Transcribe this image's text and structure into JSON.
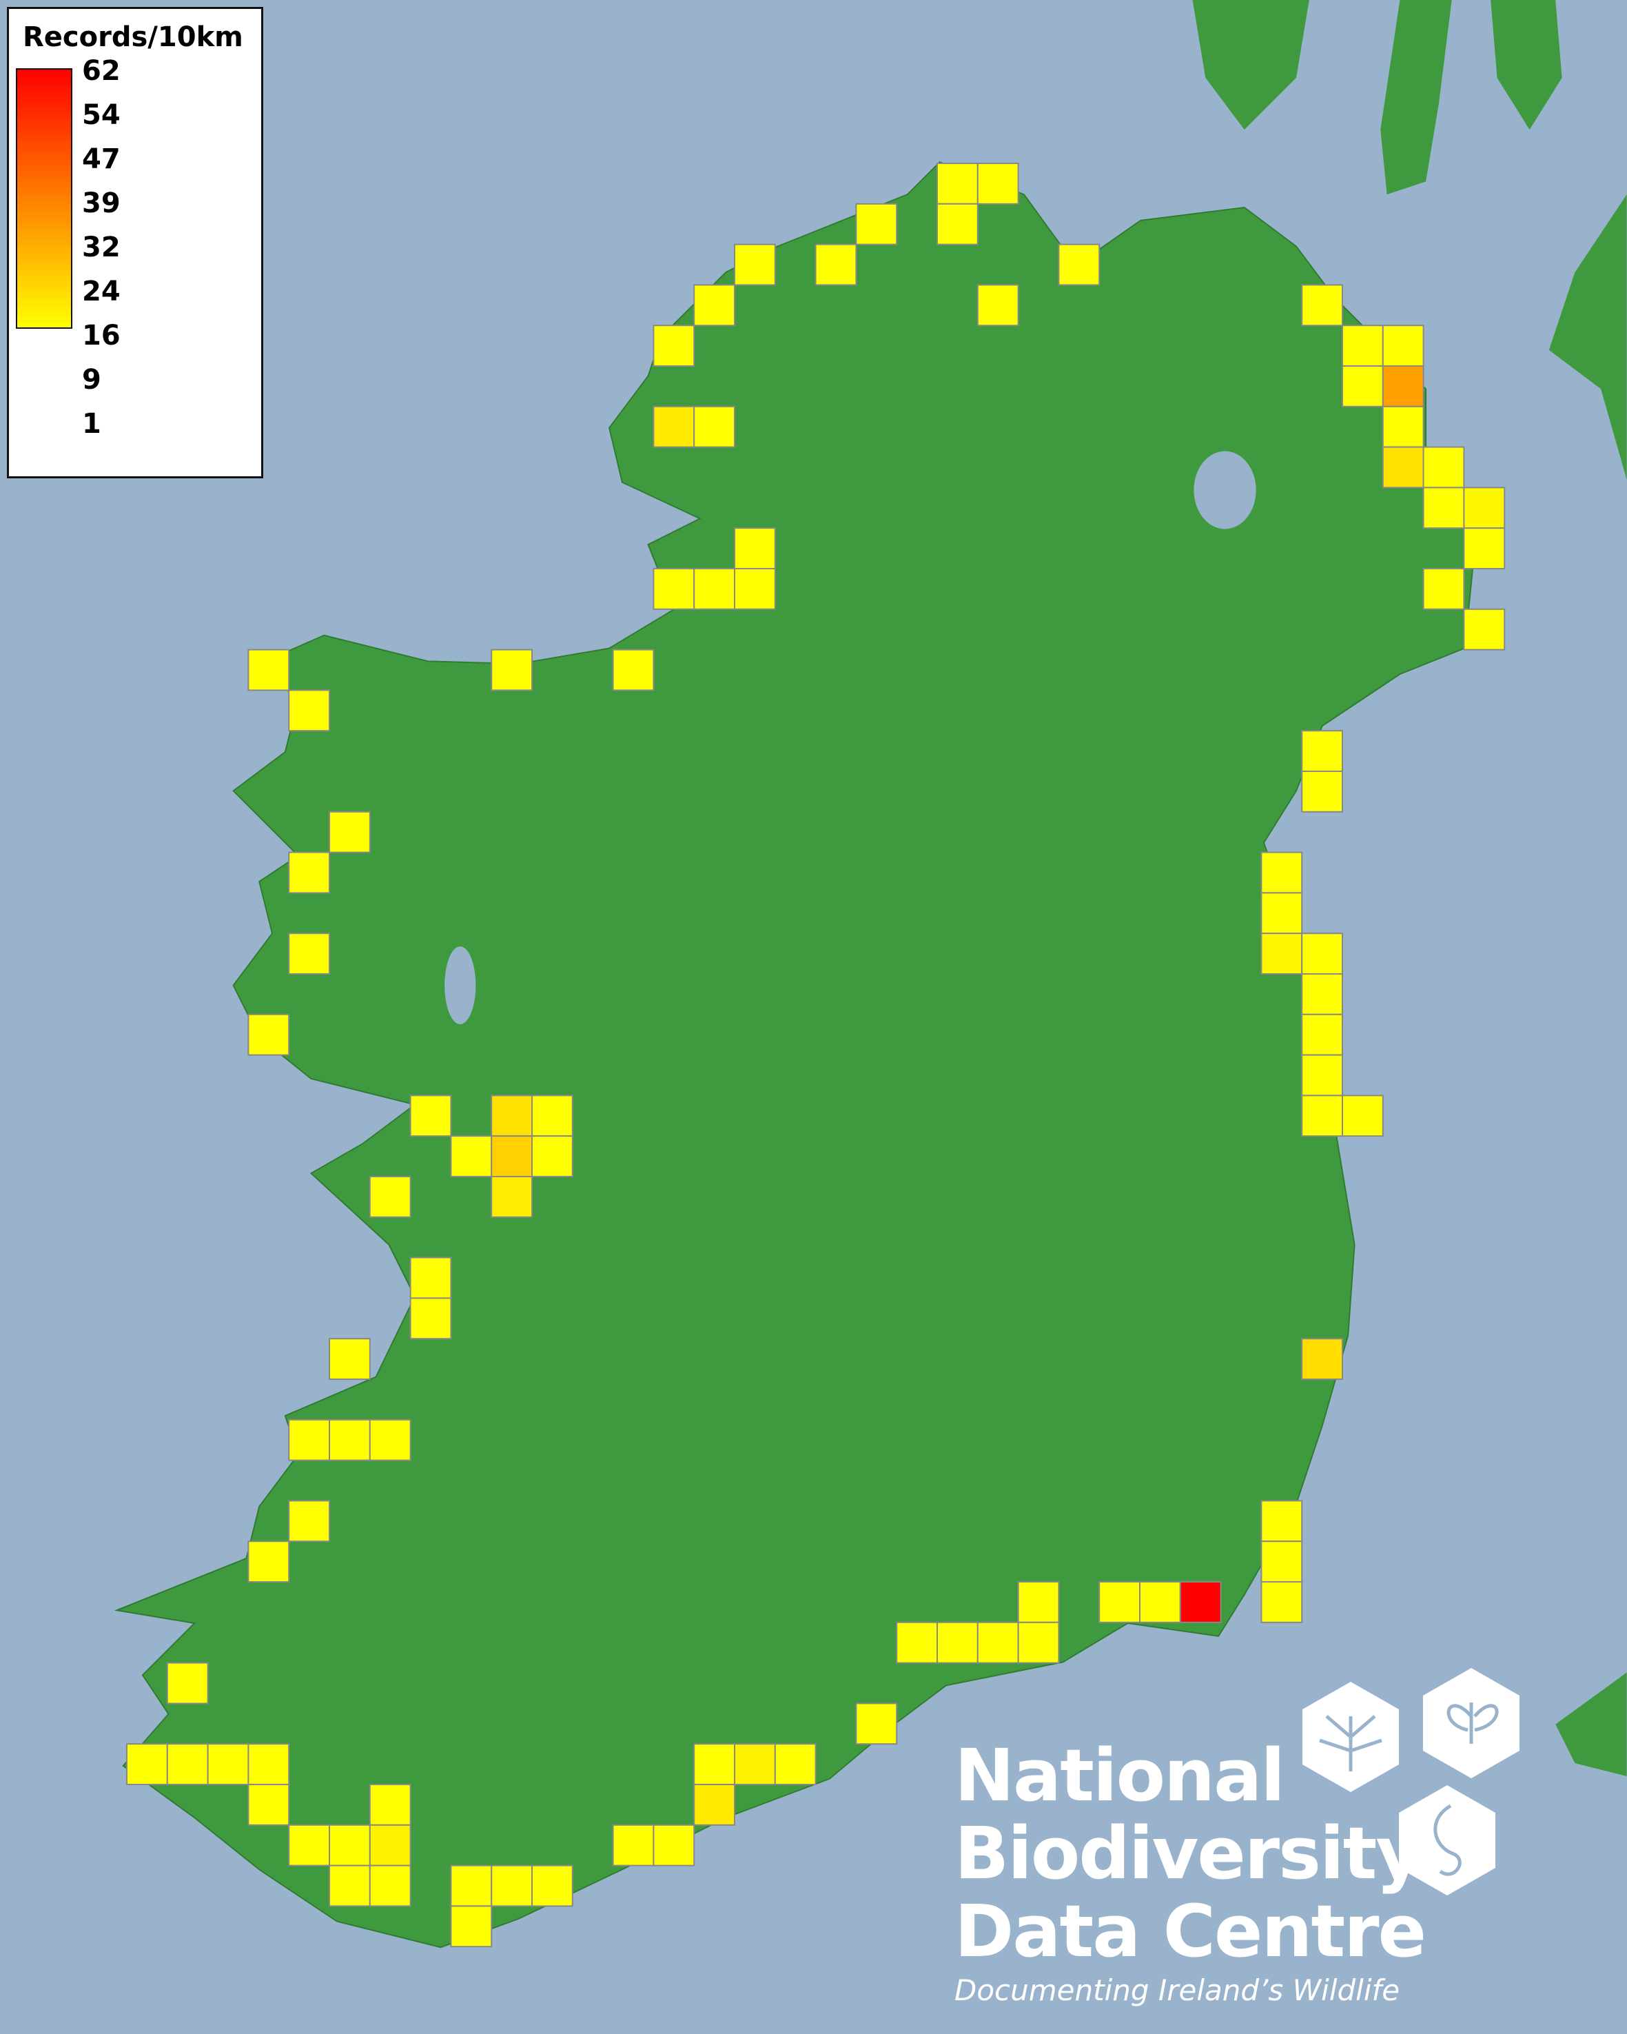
{
  "legend": {
    "title": "Records/10km",
    "ticks": [
      "62",
      "54",
      "47",
      "39",
      "32",
      "24",
      "16",
      "9",
      "1"
    ],
    "min": 1,
    "max": 62,
    "color_low": "#ffff00",
    "color_high": "#ff0000"
  },
  "map": {
    "ocean_color": "#9ab3cc",
    "land_color": "#3f9a3f",
    "cell_border_color": "#888888",
    "records_per_10km_square": [
      {
        "col": 20,
        "row": 0,
        "records": 1
      },
      {
        "col": 21,
        "row": 0,
        "records": 1
      },
      {
        "col": 20,
        "row": 1,
        "records": 1
      },
      {
        "col": 18,
        "row": 1,
        "records": 1
      },
      {
        "col": 15,
        "row": 2,
        "records": 1
      },
      {
        "col": 17,
        "row": 2,
        "records": 1
      },
      {
        "col": 23,
        "row": 2,
        "records": 1
      },
      {
        "col": 14,
        "row": 3,
        "records": 1
      },
      {
        "col": 21,
        "row": 3,
        "records": 1
      },
      {
        "col": 29,
        "row": 3,
        "records": 1
      },
      {
        "col": 13,
        "row": 4,
        "records": 1
      },
      {
        "col": 30,
        "row": 4,
        "records": 1
      },
      {
        "col": 31,
        "row": 4,
        "records": 1
      },
      {
        "col": 30,
        "row": 5,
        "records": 1
      },
      {
        "col": 31,
        "row": 5,
        "records": 24
      },
      {
        "col": 13,
        "row": 6,
        "records": 6
      },
      {
        "col": 14,
        "row": 6,
        "records": 1
      },
      {
        "col": 31,
        "row": 6,
        "records": 1
      },
      {
        "col": 31,
        "row": 7,
        "records": 8
      },
      {
        "col": 32,
        "row": 7,
        "records": 1
      },
      {
        "col": 32,
        "row": 8,
        "records": 1
      },
      {
        "col": 33,
        "row": 8,
        "records": 3
      },
      {
        "col": 15,
        "row": 9,
        "records": 1
      },
      {
        "col": 33,
        "row": 9,
        "records": 1
      },
      {
        "col": 13,
        "row": 10,
        "records": 1
      },
      {
        "col": 14,
        "row": 10,
        "records": 1
      },
      {
        "col": 15,
        "row": 10,
        "records": 1
      },
      {
        "col": 32,
        "row": 10,
        "records": 1
      },
      {
        "col": 33,
        "row": 11,
        "records": 1
      },
      {
        "col": 3,
        "row": 12,
        "records": 1
      },
      {
        "col": 9,
        "row": 12,
        "records": 1
      },
      {
        "col": 12,
        "row": 12,
        "records": 1
      },
      {
        "col": 4,
        "row": 13,
        "records": 1
      },
      {
        "col": 29,
        "row": 14,
        "records": 1
      },
      {
        "col": 29,
        "row": 15,
        "records": 1
      },
      {
        "col": 5,
        "row": 16,
        "records": 1
      },
      {
        "col": 4,
        "row": 17,
        "records": 1
      },
      {
        "col": 28,
        "row": 17,
        "records": 1
      },
      {
        "col": 28,
        "row": 18,
        "records": 1
      },
      {
        "col": 4,
        "row": 19,
        "records": 1
      },
      {
        "col": 28,
        "row": 19,
        "records": 3
      },
      {
        "col": 29,
        "row": 19,
        "records": 1
      },
      {
        "col": 29,
        "row": 20,
        "records": 1
      },
      {
        "col": 3,
        "row": 21,
        "records": 1
      },
      {
        "col": 29,
        "row": 21,
        "records": 1
      },
      {
        "col": 29,
        "row": 22,
        "records": 1
      },
      {
        "col": 7,
        "row": 23,
        "records": 1
      },
      {
        "col": 9,
        "row": 23,
        "records": 8
      },
      {
        "col": 10,
        "row": 23,
        "records": 1
      },
      {
        "col": 29,
        "row": 23,
        "records": 1
      },
      {
        "col": 30,
        "row": 23,
        "records": 1
      },
      {
        "col": 8,
        "row": 24,
        "records": 1
      },
      {
        "col": 9,
        "row": 24,
        "records": 12
      },
      {
        "col": 10,
        "row": 24,
        "records": 1
      },
      {
        "col": 6,
        "row": 25,
        "records": 1
      },
      {
        "col": 9,
        "row": 25,
        "records": 5
      },
      {
        "col": 7,
        "row": 27,
        "records": 1
      },
      {
        "col": 7,
        "row": 28,
        "records": 1
      },
      {
        "col": 5,
        "row": 29,
        "records": 1
      },
      {
        "col": 29,
        "row": 29,
        "records": 9
      },
      {
        "col": 4,
        "row": 31,
        "records": 1
      },
      {
        "col": 5,
        "row": 31,
        "records": 1
      },
      {
        "col": 6,
        "row": 31,
        "records": 1
      },
      {
        "col": 4,
        "row": 33,
        "records": 1
      },
      {
        "col": 28,
        "row": 33,
        "records": 1
      },
      {
        "col": 3,
        "row": 34,
        "records": 1
      },
      {
        "col": 28,
        "row": 34,
        "records": 1
      },
      {
        "col": 22,
        "row": 35,
        "records": 1
      },
      {
        "col": 24,
        "row": 35,
        "records": 1
      },
      {
        "col": 25,
        "row": 35,
        "records": 1
      },
      {
        "col": 26,
        "row": 35,
        "records": 62
      },
      {
        "col": 28,
        "row": 35,
        "records": 1
      },
      {
        "col": 19,
        "row": 36,
        "records": 1
      },
      {
        "col": 20,
        "row": 36,
        "records": 1
      },
      {
        "col": 21,
        "row": 36,
        "records": 1
      },
      {
        "col": 22,
        "row": 36,
        "records": 1
      },
      {
        "col": 1,
        "row": 37,
        "records": 1
      },
      {
        "col": 18,
        "row": 38,
        "records": 1
      },
      {
        "col": 0,
        "row": 39,
        "records": 1
      },
      {
        "col": 1,
        "row": 39,
        "records": 1
      },
      {
        "col": 2,
        "row": 39,
        "records": 1
      },
      {
        "col": 3,
        "row": 39,
        "records": 1
      },
      {
        "col": 14,
        "row": 39,
        "records": 1
      },
      {
        "col": 15,
        "row": 39,
        "records": 4
      },
      {
        "col": 16,
        "row": 39,
        "records": 1
      },
      {
        "col": 3,
        "row": 40,
        "records": 1
      },
      {
        "col": 6,
        "row": 40,
        "records": 1
      },
      {
        "col": 14,
        "row": 40,
        "records": 6
      },
      {
        "col": 4,
        "row": 41,
        "records": 1
      },
      {
        "col": 5,
        "row": 41,
        "records": 1
      },
      {
        "col": 6,
        "row": 41,
        "records": 4
      },
      {
        "col": 12,
        "row": 41,
        "records": 1
      },
      {
        "col": 13,
        "row": 41,
        "records": 1
      },
      {
        "col": 5,
        "row": 42,
        "records": 1
      },
      {
        "col": 6,
        "row": 42,
        "records": 1
      },
      {
        "col": 8,
        "row": 42,
        "records": 1
      },
      {
        "col": 9,
        "row": 42,
        "records": 1
      },
      {
        "col": 10,
        "row": 42,
        "records": 1
      },
      {
        "col": 8,
        "row": 43,
        "records": 1
      }
    ]
  },
  "logo": {
    "lines": [
      "National",
      "Biodiversity",
      "Data Centre"
    ],
    "tagline": "Documenting Ireland’s Wildlife",
    "icons": [
      "tree-icon",
      "butterfly-icon",
      "seahorse-icon"
    ]
  }
}
